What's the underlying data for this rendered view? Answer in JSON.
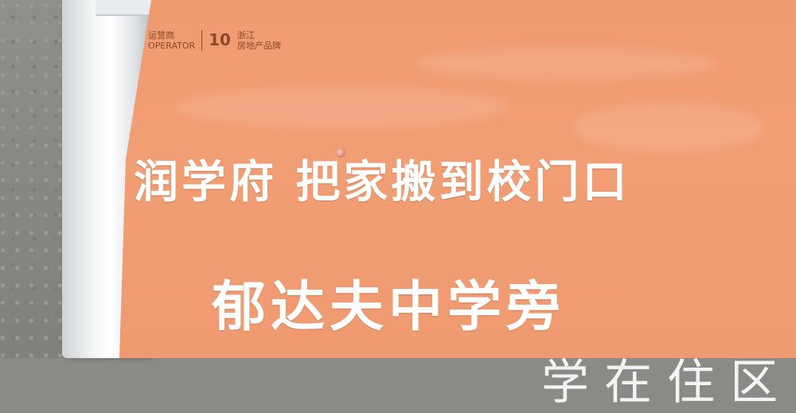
{
  "scene": {
    "description_colors": {
      "banner": "#f09a70",
      "text": "#ffffff",
      "pipe": "#f3f5f6",
      "wall": "#8a8a86"
    }
  },
  "banner": {
    "brand_left": "运营商",
    "brand_left_sub": "OPERATOR",
    "brand_number": "10",
    "brand_right_line1": "浙江",
    "brand_right_line2": "房地产品牌",
    "headline": "润学府 把家搬到校门口",
    "subline": "郁达夫中学旁",
    "bottom_partial": "学 在 住 区"
  }
}
